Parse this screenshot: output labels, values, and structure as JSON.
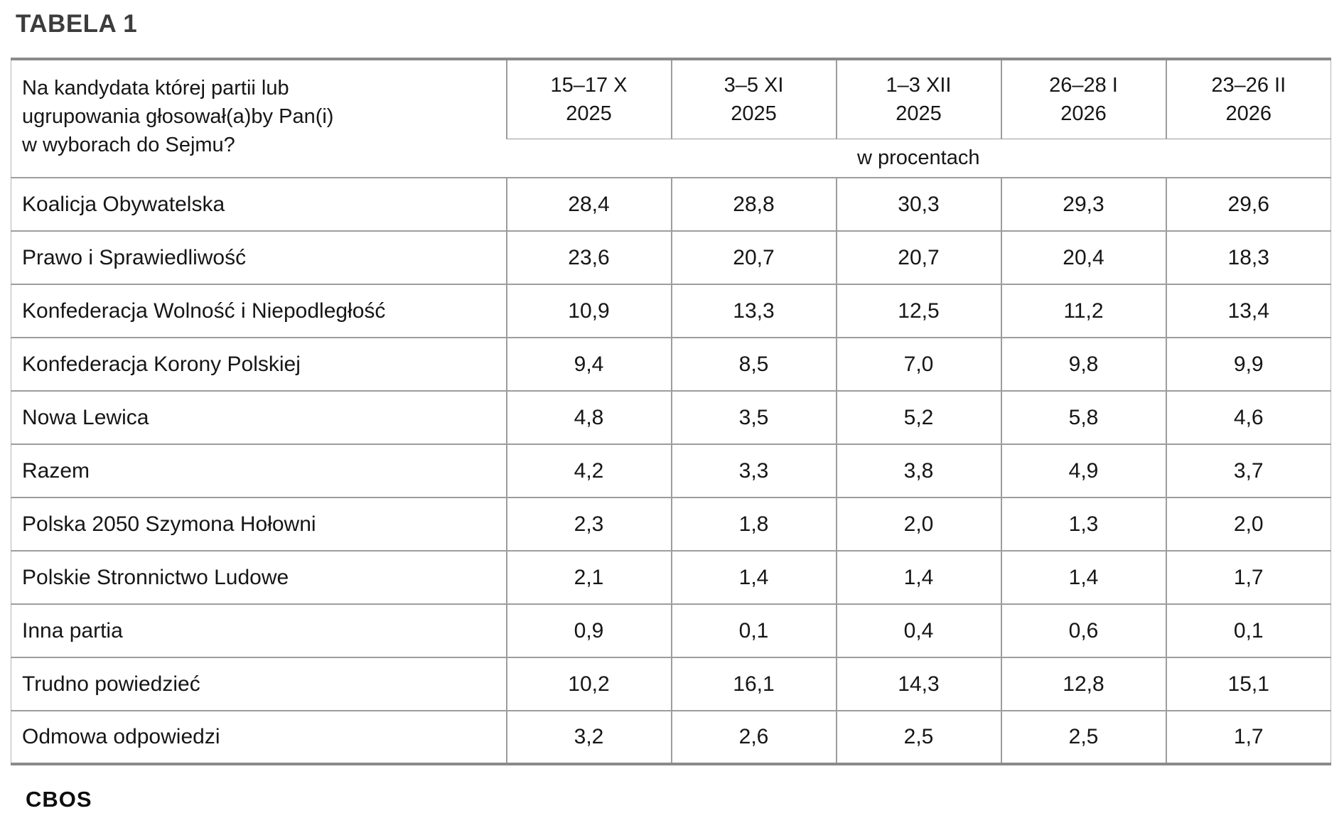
{
  "title": "TABELA 1",
  "table": {
    "question_lines": [
      "Na kandydata której partii lub",
      "ugrupowania głosował(a)by Pan(i)",
      "w wyborach do Sejmu?"
    ],
    "columns": [
      {
        "period": "15–17 X",
        "year": "2025"
      },
      {
        "period": "3–5 XI",
        "year": "2025"
      },
      {
        "period": "1–3 XII",
        "year": "2025"
      },
      {
        "period": "26–28 I",
        "year": "2026"
      },
      {
        "period": "23–26 II",
        "year": "2026"
      }
    ],
    "unit_label": "w procentach",
    "rows": [
      {
        "label": "Koalicja Obywatelska",
        "values": [
          "28,4",
          "28,8",
          "30,3",
          "29,3",
          "29,6"
        ]
      },
      {
        "label": "Prawo i Sprawiedliwość",
        "values": [
          "23,6",
          "20,7",
          "20,7",
          "20,4",
          "18,3"
        ]
      },
      {
        "label": "Konfederacja Wolność i Niepodległość",
        "values": [
          "10,9",
          "13,3",
          "12,5",
          "11,2",
          "13,4"
        ]
      },
      {
        "label": "Konfederacja Korony Polskiej",
        "values": [
          "9,4",
          "8,5",
          "7,0",
          "9,8",
          "9,9"
        ]
      },
      {
        "label": "Nowa Lewica",
        "values": [
          "4,8",
          "3,5",
          "5,2",
          "5,8",
          "4,6"
        ]
      },
      {
        "label": "Razem",
        "values": [
          "4,2",
          "3,3",
          "3,8",
          "4,9",
          "3,7"
        ]
      },
      {
        "label": "Polska 2050 Szymona Hołowni",
        "values": [
          "2,3",
          "1,8",
          "2,0",
          "1,3",
          "2,0"
        ]
      },
      {
        "label": "Polskie Stronnictwo Ludowe",
        "values": [
          "2,1",
          "1,4",
          "1,4",
          "1,4",
          "1,7"
        ]
      },
      {
        "label": "Inna partia",
        "values": [
          "0,9",
          "0,1",
          "0,4",
          "0,6",
          "0,1"
        ]
      },
      {
        "label": "Trudno powiedzieć",
        "values": [
          "10,2",
          "16,1",
          "14,3",
          "12,8",
          "15,1"
        ]
      },
      {
        "label": "Odmowa odpowiedzi",
        "values": [
          "3,2",
          "2,6",
          "2,5",
          "2,5",
          "1,7"
        ]
      }
    ]
  },
  "footer": {
    "brand": "CBOS"
  }
}
